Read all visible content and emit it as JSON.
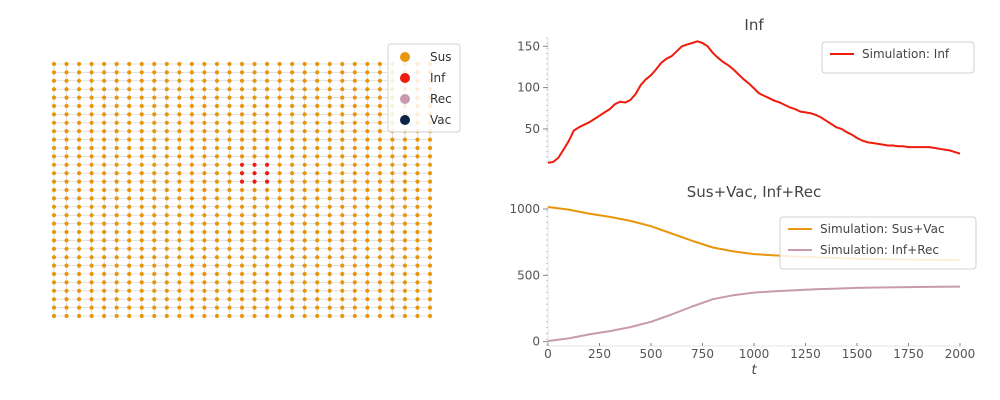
{
  "lattice": {
    "cols": 31,
    "rows": 31,
    "susceptible_color": "#e8960c",
    "infected_color": "#ee1c0c",
    "infected_nodes": [
      [
        15,
        12
      ],
      [
        16,
        12
      ],
      [
        17,
        12
      ],
      [
        15,
        13
      ],
      [
        16,
        13
      ],
      [
        17,
        13
      ],
      [
        15,
        14
      ],
      [
        16,
        14
      ],
      [
        17,
        14
      ]
    ],
    "legend": [
      {
        "label": "Sus",
        "color": "#e8960c"
      },
      {
        "label": "Inf",
        "color": "#ee1c0c"
      },
      {
        "label": "Rec",
        "color": "#c89aae"
      },
      {
        "label": "Vac",
        "color": "#0b2447"
      }
    ]
  },
  "chart_data": [
    {
      "type": "line",
      "title": "Inf",
      "xlim": [
        0,
        2000
      ],
      "ylim": [
        10,
        160
      ],
      "yticks": [
        50,
        100,
        150
      ],
      "legend_position": "top-right",
      "series": [
        {
          "name": "Simulation: Inf",
          "color": "#ee1c0c",
          "x": [
            0,
            25,
            50,
            75,
            100,
            125,
            150,
            175,
            200,
            225,
            250,
            275,
            300,
            325,
            350,
            375,
            400,
            425,
            450,
            475,
            500,
            525,
            550,
            575,
            600,
            625,
            650,
            675,
            700,
            725,
            750,
            775,
            800,
            825,
            850,
            875,
            900,
            925,
            950,
            975,
            1000,
            1025,
            1050,
            1075,
            1100,
            1125,
            1150,
            1175,
            1200,
            1225,
            1250,
            1275,
            1300,
            1325,
            1350,
            1375,
            1400,
            1425,
            1450,
            1475,
            1500,
            1525,
            1550,
            1575,
            1600,
            1625,
            1650,
            1675,
            1700,
            1725,
            1750,
            1775,
            1800,
            1825,
            1850,
            1875,
            1900,
            1925,
            1950,
            1975,
            2000
          ],
          "values": [
            9,
            10,
            15,
            25,
            35,
            48,
            52,
            55,
            58,
            62,
            66,
            70,
            74,
            80,
            83,
            82,
            85,
            92,
            103,
            110,
            115,
            122,
            130,
            135,
            138,
            144,
            150,
            152,
            154,
            156,
            154,
            150,
            142,
            136,
            131,
            127,
            122,
            116,
            110,
            105,
            99,
            93,
            90,
            87,
            84,
            82,
            79,
            76,
            74,
            71,
            70,
            69,
            67,
            64,
            60,
            56,
            52,
            50,
            46,
            43,
            39,
            36,
            34,
            33,
            32,
            31,
            30,
            30,
            29,
            29,
            28,
            28,
            28,
            28,
            28,
            27,
            26,
            25,
            24,
            22,
            20
          ]
        }
      ]
    },
    {
      "type": "line",
      "title": "Sus+Vac, Inf+Rec",
      "xlabel": "t",
      "xlim": [
        0,
        2000
      ],
      "ylim": [
        -25,
        1030
      ],
      "xticks": [
        0,
        250,
        500,
        750,
        1000,
        1250,
        1500,
        1750,
        2000
      ],
      "yticks": [
        0,
        500,
        1000
      ],
      "legend_position": "top-right",
      "series": [
        {
          "name": "Simulation: Sus+Vac",
          "color": "#e8960c",
          "x": [
            0,
            100,
            200,
            300,
            400,
            500,
            600,
            700,
            800,
            900,
            1000,
            1100,
            1200,
            1300,
            1400,
            1500,
            1600,
            1700,
            1800,
            1900,
            2000
          ],
          "values": [
            1015,
            995,
            965,
            940,
            910,
            870,
            815,
            760,
            710,
            680,
            660,
            650,
            642,
            636,
            630,
            625,
            622,
            620,
            618,
            616,
            615
          ]
        },
        {
          "name": "Simulation: Inf+Rec",
          "color": "#c89aae",
          "x": [
            0,
            100,
            200,
            300,
            400,
            500,
            600,
            700,
            800,
            900,
            1000,
            1100,
            1200,
            1300,
            1400,
            1500,
            1600,
            1700,
            1800,
            1900,
            2000
          ],
          "values": [
            5,
            25,
            55,
            80,
            110,
            150,
            205,
            265,
            320,
            350,
            370,
            380,
            388,
            395,
            400,
            405,
            408,
            410,
            412,
            414,
            415
          ]
        }
      ]
    }
  ]
}
